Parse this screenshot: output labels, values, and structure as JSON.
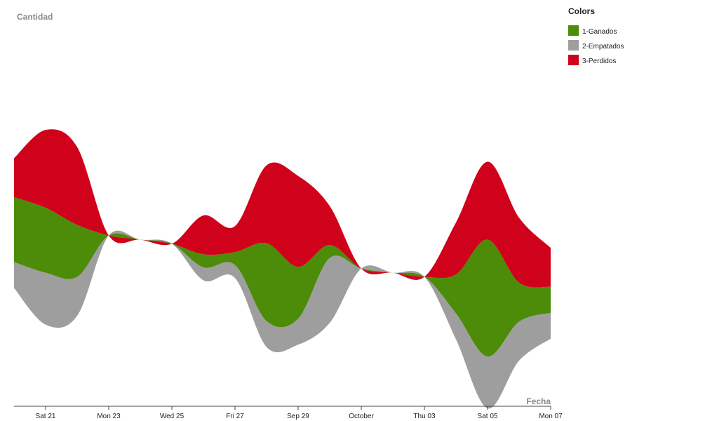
{
  "chart_data": {
    "type": "area",
    "stacking": "streamgraph",
    "ylabel": "Cantidad",
    "xlabel": "Fecha",
    "x": [
      "2023-09-20",
      "2023-09-21",
      "2023-09-22",
      "2023-09-23",
      "2023-09-24",
      "2023-09-25",
      "2023-09-26",
      "2023-09-27",
      "2023-09-28",
      "2023-09-29",
      "2023-09-30",
      "2023-10-01",
      "2023-10-02",
      "2023-10-03",
      "2023-10-04",
      "2023-10-05",
      "2023-10-06",
      "2023-10-07"
    ],
    "x_tick_labels": [
      "Sat 21",
      "Mon 23",
      "Wed 25",
      "Fri 27",
      "Sep 29",
      "October",
      "Thu 03",
      "Sat 05",
      "Mon 07"
    ],
    "legend": {
      "title": "Colors",
      "position": "top-right"
    },
    "series": [
      {
        "name": "1-Ganados",
        "color": "#4c8c08",
        "values": [
          5,
          5,
          4,
          0,
          0,
          0,
          1,
          1,
          6,
          4,
          1,
          0,
          0,
          0,
          3,
          9,
          3,
          2
        ]
      },
      {
        "name": "2-Empatados",
        "color": "#9e9e9e",
        "values": [
          2,
          4,
          3,
          0,
          0,
          0,
          1,
          1,
          2,
          2,
          5,
          0,
          0,
          0,
          2,
          4,
          3,
          2
        ]
      },
      {
        "name": "3-Perdidos",
        "color": "#d0021b",
        "values": [
          3,
          6,
          6,
          0,
          0,
          0,
          3,
          2,
          6,
          7,
          3,
          0,
          0,
          0,
          4,
          6,
          5,
          3
        ]
      }
    ]
  }
}
